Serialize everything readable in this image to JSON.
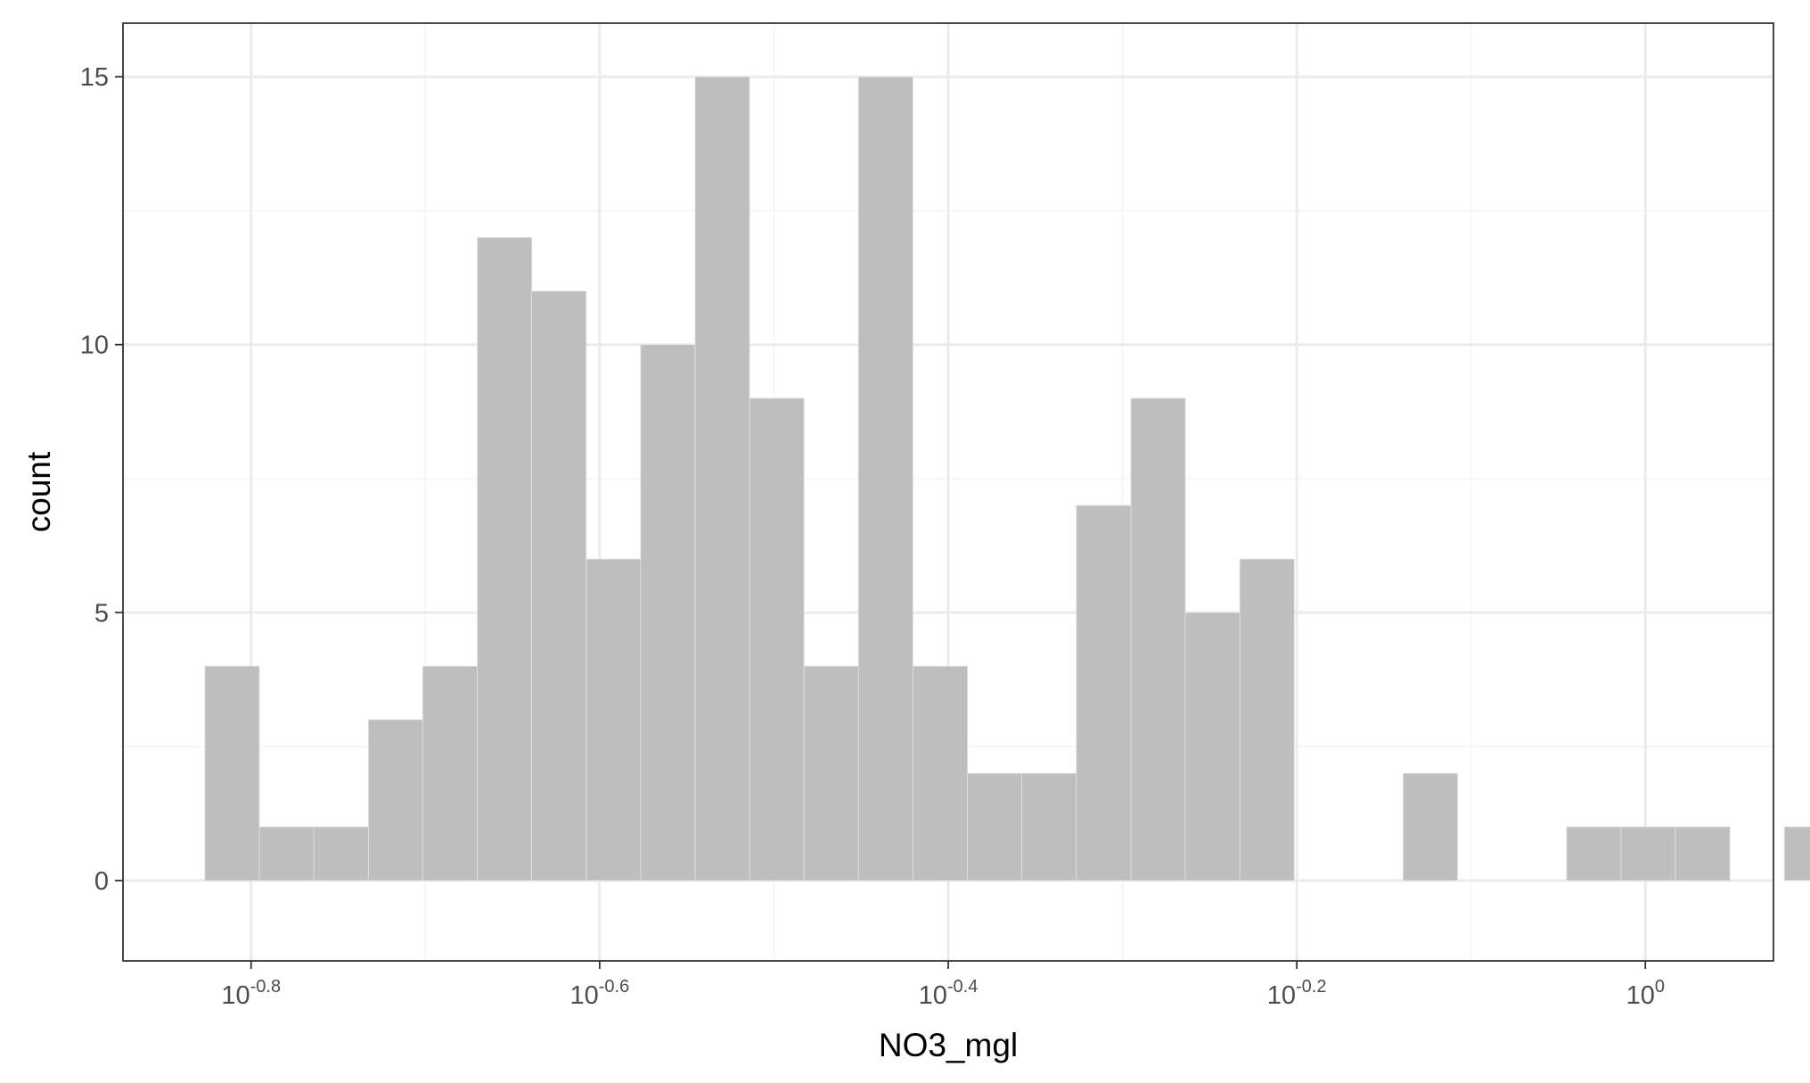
{
  "chart_data": {
    "type": "bar",
    "xlabel": "NO3_mgl",
    "ylabel": "count",
    "x_scale": "log10",
    "x_range_log10": [
      -0.8735,
      0.0735
    ],
    "y_range": [
      -1.5,
      16.0
    ],
    "x_ticks": [
      {
        "log10": -0.8,
        "label": "10",
        "exp": "-0.8"
      },
      {
        "log10": -0.6,
        "label": "10",
        "exp": "-0.6"
      },
      {
        "log10": -0.4,
        "label": "10",
        "exp": "-0.4"
      },
      {
        "log10": -0.2,
        "label": "10",
        "exp": "-0.2"
      },
      {
        "log10": 0.0,
        "label": "10",
        "exp": "0"
      }
    ],
    "x_minor_log10": [
      -0.7,
      -0.5,
      -0.3,
      -0.1
    ],
    "y_ticks": [
      {
        "value": 0,
        "label": "0"
      },
      {
        "value": 5,
        "label": "5"
      },
      {
        "value": 10,
        "label": "10"
      },
      {
        "value": 15,
        "label": "15"
      }
    ],
    "y_minor": [
      2.5,
      7.5,
      12.5
    ],
    "grid": true,
    "bin_width_log10": 0.03125,
    "bins": [
      {
        "x0_log10": -0.8265,
        "count": 4
      },
      {
        "x0_log10": -0.7952,
        "count": 1
      },
      {
        "x0_log10": -0.764,
        "count": 1
      },
      {
        "x0_log10": -0.7327,
        "count": 3
      },
      {
        "x0_log10": -0.7015,
        "count": 4
      },
      {
        "x0_log10": -0.6702,
        "count": 12
      },
      {
        "x0_log10": -0.639,
        "count": 11
      },
      {
        "x0_log10": -0.6077,
        "count": 6
      },
      {
        "x0_log10": -0.5765,
        "count": 10
      },
      {
        "x0_log10": -0.5452,
        "count": 15
      },
      {
        "x0_log10": -0.514,
        "count": 9
      },
      {
        "x0_log10": -0.4827,
        "count": 4
      },
      {
        "x0_log10": -0.4515,
        "count": 15
      },
      {
        "x0_log10": -0.4202,
        "count": 4
      },
      {
        "x0_log10": -0.389,
        "count": 2
      },
      {
        "x0_log10": -0.3577,
        "count": 2
      },
      {
        "x0_log10": -0.3265,
        "count": 7
      },
      {
        "x0_log10": -0.2952,
        "count": 9
      },
      {
        "x0_log10": -0.264,
        "count": 5
      },
      {
        "x0_log10": -0.2327,
        "count": 6
      },
      {
        "x0_log10": -0.2015,
        "count": 0
      },
      {
        "x0_log10": -0.1702,
        "count": 0
      },
      {
        "x0_log10": -0.139,
        "count": 2
      },
      {
        "x0_log10": -0.1077,
        "count": 0
      },
      {
        "x0_log10": -0.0765,
        "count": 0
      },
      {
        "x0_log10": -0.0452,
        "count": 1
      },
      {
        "x0_log10": -0.014,
        "count": 1
      },
      {
        "x0_log10": 0.0173,
        "count": 1
      },
      {
        "x0_log10": 0.0485,
        "count": 0
      },
      {
        "x0_log10": 0.0798,
        "count": 1
      }
    ],
    "colors": {
      "bar_fill": "#bebebe",
      "bar_edge": "#e2e2e2",
      "grid_major": "#ebebeb",
      "grid_minor": "#f5f5f5",
      "panel_border": "#333333",
      "tick_text": "#4d4d4d",
      "axis_title": "#000000"
    }
  }
}
